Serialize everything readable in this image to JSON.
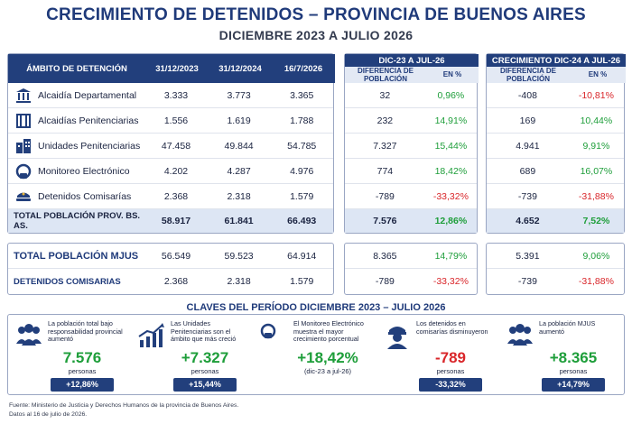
{
  "header": {
    "title": "CRECIMIENTO DE DETENIDOS – PROVINCIA DE BUENOS AIRES",
    "subtitle": "DICIEMBRE 2023 A JULIO 2026"
  },
  "main_table": {
    "columns": [
      "ÁMBITO DE DETENCIÓN",
      "31/12/2023",
      "31/12/2024",
      "16/7/2026"
    ],
    "rows": [
      {
        "icon": "building-columns-icon",
        "name": "Alcaidía Departamental",
        "v1": "3.333",
        "v2": "3.773",
        "v3": "3.365"
      },
      {
        "icon": "prison-bars-icon",
        "name": "Alcaidías Penitenciarias",
        "v1": "1.556",
        "v2": "1.619",
        "v3": "1.788"
      },
      {
        "icon": "buildings-icon",
        "name": "Unidades Penitenciarias",
        "v1": "47.458",
        "v2": "49.844",
        "v3": "54.785"
      },
      {
        "icon": "ankle-monitor-icon",
        "name": "Monitoreo Electrónico",
        "v1": "4.202",
        "v2": "4.287",
        "v3": "4.976"
      },
      {
        "icon": "police-cap-icon",
        "name": "Detenidos Comisarías",
        "v1": "2.368",
        "v2": "2.318",
        "v3": "1.579"
      }
    ],
    "total": {
      "name": "TOTAL POBLACIÓN PROV. BS. AS.",
      "v1": "58.917",
      "v2": "61.841",
      "v3": "66.493"
    }
  },
  "growth_2023": {
    "title": "DIC-23 A JUL-26",
    "col_diff": "DIFERENCIA DE POBLACIÓN",
    "col_pct": "EN %",
    "rows": [
      {
        "diff": "32",
        "pct": "0,96%",
        "sign": "pos"
      },
      {
        "diff": "232",
        "pct": "14,91%",
        "sign": "pos"
      },
      {
        "diff": "7.327",
        "pct": "15,44%",
        "sign": "pos"
      },
      {
        "diff": "774",
        "pct": "18,42%",
        "sign": "pos"
      },
      {
        "diff": "-789",
        "pct": "-33,32%",
        "sign": "neg"
      }
    ],
    "total": {
      "diff": "7.576",
      "pct": "12,86%",
      "sign": "pos"
    }
  },
  "growth_2024": {
    "title": "CRECIMIENTO DIC-24 A JUL-26",
    "col_diff": "DIFERENCIA DE POBLACIÓN",
    "col_pct": "EN %",
    "rows": [
      {
        "diff": "-408",
        "pct": "-10,81%",
        "sign": "neg"
      },
      {
        "diff": "169",
        "pct": "10,44%",
        "sign": "pos"
      },
      {
        "diff": "4.941",
        "pct": "9,91%",
        "sign": "pos"
      },
      {
        "diff": "689",
        "pct": "16,07%",
        "sign": "pos"
      },
      {
        "diff": "-739",
        "pct": "-31,88%",
        "sign": "neg"
      }
    ],
    "total": {
      "diff": "4.652",
      "pct": "7,52%",
      "sign": "pos"
    }
  },
  "mjus_table": {
    "rows": [
      {
        "name": "TOTAL POBLACIÓN MJUS",
        "v1": "56.549",
        "v2": "59.523",
        "v3": "64.914",
        "d1": "8.365",
        "p1": "14,79%",
        "s1": "pos",
        "d2": "5.391",
        "p2": "9,06%",
        "s2": "pos"
      },
      {
        "name": "DETENIDOS COMISARIAS",
        "v1": "2.368",
        "v2": "2.318",
        "v3": "1.579",
        "d1": "-789",
        "p1": "-33,32%",
        "s1": "neg",
        "d2": "-739",
        "p2": "-31,88%",
        "s2": "neg"
      }
    ]
  },
  "claves": {
    "title": "CLAVES DEL PERÍODO DICIEMBRE 2023 – JULIO 2026",
    "cards": [
      {
        "icon": "people-group-icon",
        "text": "La población total bajo responsabilidad provincial aumentó",
        "value": "7.576",
        "unit": "personas",
        "badge": "+12,86%",
        "sign": "pos"
      },
      {
        "icon": "growth-chart-icon",
        "text": "Las Unidades Penitenciarias son el ámbito que más creció",
        "value": "+7.327",
        "unit": "personas",
        "badge": "+15,44%",
        "sign": "pos"
      },
      {
        "icon": "ankle-monitor-icon",
        "text": "El Monitoreo Electrónico muestra el mayor crecimiento porcentual",
        "value": "+18,42%",
        "unit": "(dic-23 a jul-26)",
        "badge": "",
        "sign": "pos"
      },
      {
        "icon": "police-officer-icon",
        "text": "Los detenidos en comisarías disminuyeron",
        "value": "-789",
        "unit": "personas",
        "badge": "-33,32%",
        "sign": "neg"
      },
      {
        "icon": "people-group-icon",
        "text": "La población MJUS aumentó",
        "value": "+8.365",
        "unit": "personas",
        "badge": "+14,79%",
        "sign": "pos"
      }
    ]
  },
  "footer": {
    "source": "Fuente: Ministerio de Justicia y Derechos Humanos de la provincia de Buenos Aires.",
    "date": "Datos al 16 de julio de 2026."
  },
  "colors": {
    "navy": "#223f7c",
    "green": "#1e9e3a",
    "red": "#d9262a",
    "total_bg": "#dde6f4"
  }
}
